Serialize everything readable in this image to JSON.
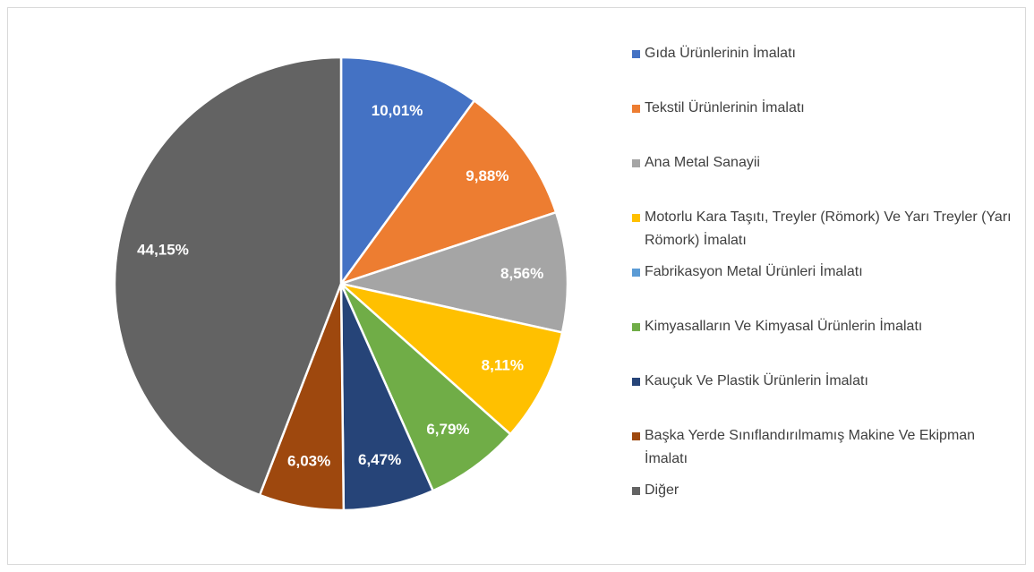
{
  "chart_data": {
    "type": "pie",
    "categories": [
      "Gıda Ürünlerinin İmalatı",
      "Tekstil Ürünlerinin İmalatı",
      "Ana Metal Sanayii",
      "Motorlu Kara Taşıtı, Treyler (Römork) Ve Yarı Treyler (Yarı Römork) İmalatı",
      "Fabrikasyon Metal Ürünleri İmalatı",
      "Kimyasalların Ve Kimyasal Ürünlerin İmalatı",
      "Kauçuk Ve Plastik Ürünlerin İmalatı",
      "Başka Yerde Sınıflandırılmamış Makine Ve Ekipman İmalatı",
      "Diğer"
    ],
    "values": [
      10.01,
      9.88,
      8.56,
      8.11,
      0,
      6.79,
      6.47,
      6.03,
      44.15
    ],
    "value_labels": [
      "10,01%",
      "9,88%",
      "8,56%",
      "8,11%",
      null,
      "6,79%",
      "6,47%",
      "6,03%",
      "44,15%"
    ],
    "colors": [
      "#4472c4",
      "#ed7d31",
      "#a5a5a5",
      "#ffc000",
      "#5b9bd5",
      "#70ad47",
      "#264478",
      "#9e480e",
      "#636363"
    ],
    "legend": "right"
  }
}
